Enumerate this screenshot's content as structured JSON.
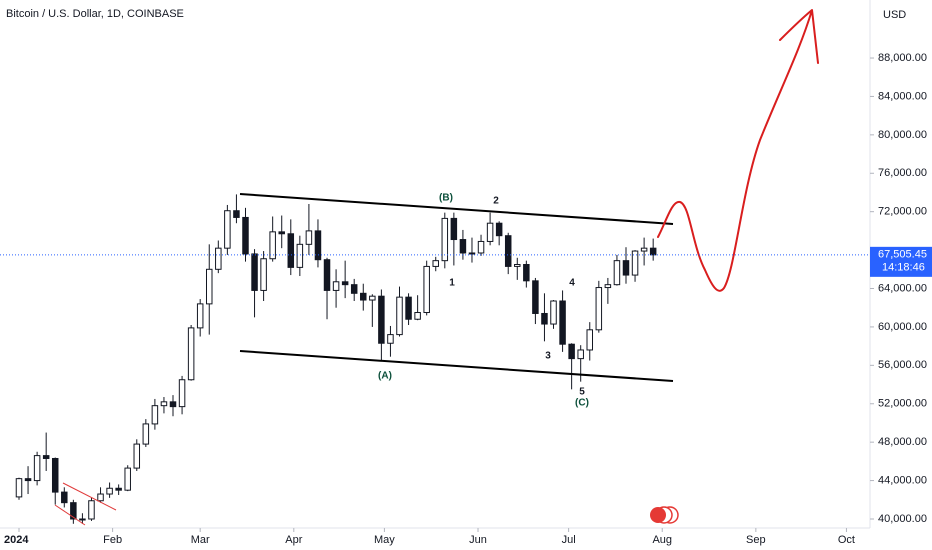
{
  "chart_data": {
    "type": "candlestick",
    "title": "Bitcoin / U.S. Dollar, 1D, COINBASE",
    "currency": "USD",
    "current_price": {
      "value": 67505.45,
      "label": "67,505.45"
    },
    "countdown": "14:18:46",
    "up_color": "#ffffff",
    "down_color": "#131722",
    "annotations": [
      "(B)",
      "2",
      "1",
      "3",
      "4",
      "5",
      "(C)",
      "(A)"
    ],
    "xlim": [
      -6.29,
      281.8
    ],
    "xticks": [
      {
        "value": 0,
        "label": "2024"
      },
      {
        "value": 31,
        "label": "Feb"
      },
      {
        "value": 60,
        "label": "Mar"
      },
      {
        "value": 91,
        "label": "Apr"
      },
      {
        "value": 121,
        "label": "May"
      },
      {
        "value": 152,
        "label": "Jun"
      },
      {
        "value": 182,
        "label": "Jul"
      },
      {
        "value": 213,
        "label": "Aug"
      },
      {
        "value": 244,
        "label": "Sep"
      },
      {
        "value": 274,
        "label": "Oct"
      }
    ],
    "ylim": [
      39062,
      94042
    ],
    "yticks": [
      {
        "value": 40000,
        "label": "40,000.00"
      },
      {
        "value": 44000,
        "label": "44,000.00"
      },
      {
        "value": 48000,
        "label": "48,000.00"
      },
      {
        "value": 52000,
        "label": "52,000.00"
      },
      {
        "value": 56000,
        "label": "56,000.00"
      },
      {
        "value": 60000,
        "label": "60,000.00"
      },
      {
        "value": 64000,
        "label": "64,000.00"
      },
      {
        "value": 72000,
        "label": "72,000.00"
      },
      {
        "value": 76000,
        "label": "76,000.00"
      },
      {
        "value": 80000,
        "label": "80,000.00"
      },
      {
        "value": 84000,
        "label": "84,000.00"
      },
      {
        "value": 88000,
        "label": "88,000.00"
      }
    ],
    "x": [
      0,
      3,
      6,
      9,
      12,
      15,
      18,
      21,
      24,
      27,
      30,
      33,
      36,
      39,
      42,
      45,
      48,
      51,
      54,
      57,
      60,
      63,
      66,
      69,
      72,
      75,
      78,
      81,
      84,
      87,
      90,
      93,
      96,
      99,
      102,
      105,
      108,
      111,
      114,
      117,
      120,
      123,
      126,
      129,
      132,
      135,
      138,
      141,
      144,
      147,
      150,
      153,
      156,
      159,
      162,
      165,
      168,
      171,
      174,
      177,
      180,
      183,
      186,
      189,
      192,
      195,
      198,
      201,
      204,
      207,
      210
    ],
    "open": [
      42300,
      44200,
      44000,
      46600,
      46300,
      42800,
      41700,
      40000,
      40000,
      41900,
      42600,
      43200,
      43000,
      45300,
      47800,
      49900,
      51800,
      52200,
      51700,
      54500,
      59900,
      62400,
      66000,
      68200,
      72100,
      71400,
      67600,
      63800,
      67100,
      69900,
      69700,
      66200,
      68600,
      70000,
      67000,
      63800,
      64700,
      64400,
      63500,
      62800,
      63200,
      58300,
      59200,
      63100,
      60800,
      61500,
      66300,
      66900,
      71300,
      69100,
      67700,
      67700,
      68900,
      70800,
      69500,
      66300,
      66500,
      64800,
      61400,
      60300,
      62700,
      58200,
      56700,
      57600,
      59700,
      64100,
      64400,
      66900,
      65400,
      67900,
      68200
    ],
    "high": [
      44300,
      45500,
      47000,
      49000,
      46400,
      43300,
      42000,
      40600,
      42200,
      43300,
      43800,
      43600,
      45600,
      48300,
      50400,
      52500,
      52700,
      52900,
      54900,
      60200,
      62900,
      68600,
      69000,
      72700,
      73800,
      72400,
      68100,
      67900,
      71500,
      71600,
      71200,
      69500,
      72800,
      71200,
      67200,
      66000,
      66900,
      65000,
      64500,
      63400,
      63900,
      60100,
      64200,
      63500,
      63300,
      66900,
      67300,
      71900,
      71900,
      70100,
      69300,
      69600,
      71900,
      71000,
      69800,
      67200,
      66900,
      65100,
      63500,
      62800,
      63800,
      58300,
      58100,
      60500,
      64800,
      65100,
      67500,
      68300,
      68000,
      69300,
      69200
    ],
    "low": [
      42000,
      42600,
      43500,
      45000,
      41500,
      41200,
      39500,
      39500,
      39800,
      41700,
      42200,
      42500,
      42900,
      45000,
      47500,
      49300,
      51000,
      50700,
      50900,
      54400,
      59000,
      59200,
      65600,
      67500,
      70800,
      66800,
      61000,
      62700,
      66800,
      68200,
      65400,
      65300,
      67500,
      66200,
      60800,
      62000,
      63000,
      62700,
      61700,
      60000,
      56500,
      56900,
      59000,
      60200,
      60700,
      61200,
      65800,
      66100,
      66400,
      67000,
      66700,
      67400,
      68500,
      68500,
      65500,
      64900,
      64100,
      60300,
      58500,
      59800,
      57400,
      53500,
      54300,
      56500,
      59400,
      62400,
      64300,
      64500,
      64700,
      66400,
      66900
    ],
    "close": [
      44200,
      44000,
      46600,
      46300,
      42800,
      41700,
      40000,
      40000,
      41900,
      42600,
      43200,
      43000,
      45300,
      47800,
      49900,
      51800,
      52200,
      51700,
      54500,
      59900,
      62400,
      66000,
      68200,
      72100,
      71400,
      67600,
      63800,
      67100,
      69900,
      69700,
      66200,
      68600,
      70000,
      67000,
      63800,
      64700,
      64400,
      63500,
      62800,
      63200,
      58300,
      59200,
      63100,
      60800,
      61500,
      66300,
      66900,
      71300,
      69100,
      67700,
      67700,
      68900,
      70800,
      69500,
      66300,
      66500,
      64800,
      61400,
      60300,
      62700,
      58200,
      56700,
      57600,
      59700,
      64100,
      64400,
      66900,
      65400,
      67900,
      68200,
      67505
    ]
  }
}
